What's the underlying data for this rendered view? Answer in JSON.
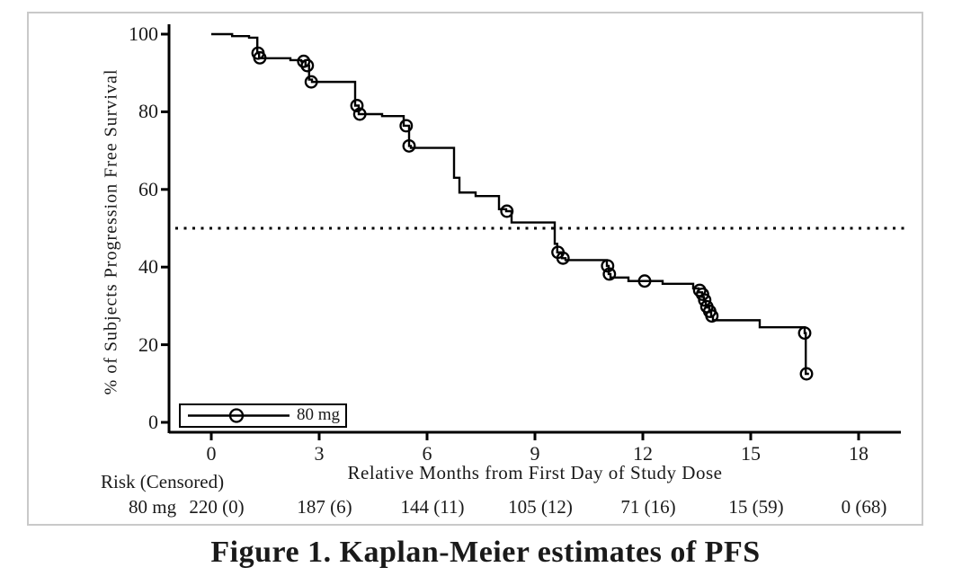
{
  "figure": {
    "caption": "Figure 1. Kaplan-Meier estimates of PFS"
  },
  "colors": {
    "curve": "#000000",
    "axis": "#000000",
    "panel_border": "#c9c9c9",
    "background": "#ffffff"
  },
  "chart_data": {
    "type": "line",
    "subtype": "kaplan-meier-step",
    "title": "Figure 1. Kaplan-Meier estimates of PFS",
    "xlabel": "Relative Months from First Day of Study Dose",
    "ylabel": "% of Subjects Progression Free Survival",
    "x_ticks": [
      0,
      3,
      6,
      9,
      12,
      15,
      18
    ],
    "y_ticks": [
      0,
      20,
      40,
      60,
      80,
      100
    ],
    "xlim": [
      -1.2,
      19.2
    ],
    "ylim": [
      0,
      100
    ],
    "grid": false,
    "legend": {
      "position": "bottom-left",
      "entries": [
        "80 mg"
      ]
    },
    "reference_line": {
      "y": 50,
      "style": "dotted",
      "meaning": "50% survival (median)"
    },
    "series": [
      {
        "name": "80 mg",
        "marker": "open-circle-censor",
        "step_points": [
          [
            0,
            100
          ],
          [
            0.58,
            100
          ],
          [
            0.58,
            99.5
          ],
          [
            1.05,
            99.5
          ],
          [
            1.05,
            99.1
          ],
          [
            1.28,
            99.1
          ],
          [
            1.28,
            95.1
          ],
          [
            1.33,
            95.1
          ],
          [
            1.33,
            93.8
          ],
          [
            2.2,
            93.8
          ],
          [
            2.2,
            93.3
          ],
          [
            2.5,
            93.3
          ],
          [
            2.5,
            93
          ],
          [
            2.62,
            93
          ],
          [
            2.62,
            91.9
          ],
          [
            2.72,
            91.9
          ],
          [
            2.72,
            88.3
          ],
          [
            2.8,
            88.3
          ],
          [
            2.8,
            87.7
          ],
          [
            4,
            87.7
          ],
          [
            4,
            81.6
          ],
          [
            4.1,
            81.6
          ],
          [
            4.1,
            79.4
          ],
          [
            4.75,
            79.4
          ],
          [
            4.75,
            78.9
          ],
          [
            5.35,
            78.9
          ],
          [
            5.35,
            76.4
          ],
          [
            5.5,
            76.4
          ],
          [
            5.5,
            71.2
          ],
          [
            5.55,
            71.2
          ],
          [
            5.55,
            70.7
          ],
          [
            6.75,
            70.7
          ],
          [
            6.75,
            63
          ],
          [
            6.9,
            63
          ],
          [
            6.9,
            59.2
          ],
          [
            7.35,
            59.2
          ],
          [
            7.35,
            58.3
          ],
          [
            8,
            58.3
          ],
          [
            8,
            54.9
          ],
          [
            8.2,
            54.9
          ],
          [
            8.2,
            54.4
          ],
          [
            8.35,
            54.4
          ],
          [
            8.35,
            51.5
          ],
          [
            9.55,
            51.5
          ],
          [
            9.55,
            46
          ],
          [
            9.62,
            46
          ],
          [
            9.62,
            43.8
          ],
          [
            9.75,
            43.8
          ],
          [
            9.75,
            42.3
          ],
          [
            9.85,
            42.3
          ],
          [
            9.85,
            41.8
          ],
          [
            11,
            41.8
          ],
          [
            11,
            40.3
          ],
          [
            11.05,
            40.3
          ],
          [
            11.05,
            38.2
          ],
          [
            11.1,
            38.2
          ],
          [
            11.1,
            37.3
          ],
          [
            11.6,
            37.3
          ],
          [
            11.6,
            36.4
          ],
          [
            12.55,
            36.4
          ],
          [
            12.55,
            35.7
          ],
          [
            13.4,
            35.7
          ],
          [
            13.4,
            34.5
          ],
          [
            13.55,
            34.5
          ],
          [
            13.55,
            33.5
          ],
          [
            13.65,
            33.5
          ],
          [
            13.65,
            32.3
          ],
          [
            13.7,
            32.3
          ],
          [
            13.7,
            31.2
          ],
          [
            13.75,
            31.2
          ],
          [
            13.75,
            29.6
          ],
          [
            13.85,
            29.6
          ],
          [
            13.85,
            28.4
          ],
          [
            13.9,
            28.4
          ],
          [
            13.9,
            27.2
          ],
          [
            13.95,
            27.2
          ],
          [
            13.95,
            26.3
          ],
          [
            15.25,
            26.3
          ],
          [
            15.25,
            24.5
          ],
          [
            16.5,
            24.5
          ],
          [
            16.5,
            23
          ],
          [
            16.53,
            23
          ],
          [
            16.53,
            12.5
          ],
          [
            16.62,
            12.5
          ]
        ],
        "censor_marks": [
          [
            1.3,
            95.1
          ],
          [
            1.35,
            93.9
          ],
          [
            2.57,
            93
          ],
          [
            2.67,
            91.9
          ],
          [
            2.78,
            87.7
          ],
          [
            4.05,
            81.6
          ],
          [
            4.13,
            79.4
          ],
          [
            5.42,
            76.4
          ],
          [
            5.5,
            71.2
          ],
          [
            8.22,
            54.4
          ],
          [
            9.64,
            43.8
          ],
          [
            9.78,
            42.3
          ],
          [
            11.02,
            40.3
          ],
          [
            11.07,
            38.2
          ],
          [
            12.05,
            36.4
          ],
          [
            13.58,
            34
          ],
          [
            13.66,
            33
          ],
          [
            13.72,
            31.5
          ],
          [
            13.78,
            29.8
          ],
          [
            13.86,
            28.6
          ],
          [
            13.92,
            27.4
          ],
          [
            16.5,
            23
          ],
          [
            16.55,
            12.5
          ]
        ]
      }
    ],
    "risk_table": {
      "label": "Risk (Censored)",
      "row_name": "80 mg",
      "time_points": [
        0,
        3,
        6,
        9,
        12,
        15,
        18
      ],
      "values": [
        "220 (0)",
        "187 (6)",
        "144 (11)",
        "105 (12)",
        "71 (16)",
        "15 (59)",
        "0 (68)"
      ]
    }
  }
}
